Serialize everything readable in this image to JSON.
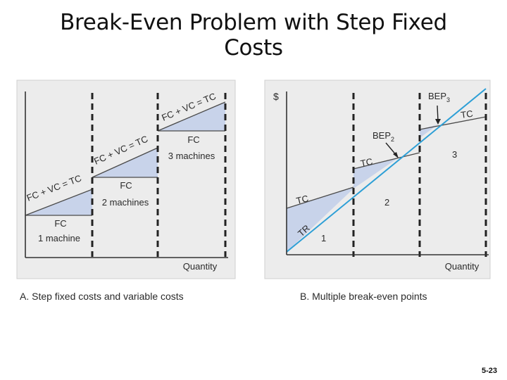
{
  "title": {
    "line1": "Break-Even Problem with Step Fixed",
    "line2": "Costs"
  },
  "colors": {
    "panel_bg": "#ececec",
    "line": "#4a4a4a",
    "fill_region": "#c8d3ea",
    "tr_line": "#2d9fd6"
  },
  "panel_a": {
    "caption": "A. Step fixed costs and variable costs",
    "x_label": "Quantity",
    "tc_label_1": "FC + VC = TC",
    "tc_label_2": "FC + VC = TC",
    "tc_label_3": "FC + VC = TC",
    "fc1_line1": "FC",
    "fc1_line2": "1 machine",
    "fc2_line1": "FC",
    "fc2_line2": "2 machines",
    "fc3_line1": "FC",
    "fc3_line2": "3 machines"
  },
  "panel_b": {
    "caption": "B. Multiple break-even points",
    "y_label": "$",
    "x_label": "Quantity",
    "tc_label_1": "TC",
    "tc_label_2": "TC",
    "tc_label_3": "TC",
    "tr_label": "TR",
    "region_1": "1",
    "region_2": "2",
    "region_3": "3",
    "bep2": "BEP",
    "bep2_sub": "2",
    "bep3": "BEP",
    "bep3_sub": "3"
  },
  "page_number": "5-23"
}
